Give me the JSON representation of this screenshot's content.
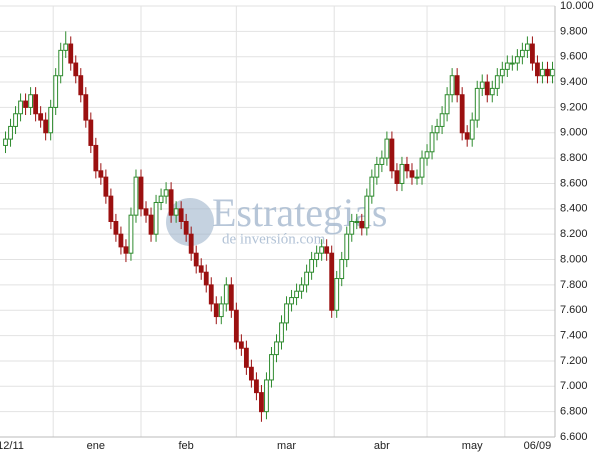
{
  "chart_data": {
    "type": "candlestick",
    "watermark": {
      "title": "Estrategias",
      "subtitle": "de inversión.com"
    },
    "categories": [
      null,
      "12/11",
      null,
      null,
      null,
      null,
      null,
      null,
      null,
      null,
      null,
      null,
      null,
      null,
      null,
      null,
      null,
      null,
      "ene",
      null,
      null,
      null,
      null,
      null,
      null,
      null,
      null,
      null,
      null,
      null,
      null,
      null,
      null,
      null,
      null,
      null,
      "feb",
      null,
      null,
      null,
      null,
      null,
      null,
      null,
      null,
      null,
      null,
      null,
      null,
      null,
      null,
      null,
      null,
      null,
      null,
      null,
      "mar",
      null,
      null,
      null,
      null,
      null,
      null,
      null,
      null,
      null,
      null,
      null,
      null,
      null,
      null,
      null,
      null,
      null,
      null,
      "abr",
      null,
      null,
      null,
      null,
      null,
      null,
      null,
      null,
      null,
      null,
      null,
      null,
      null,
      null,
      null,
      null,
      null,
      "may",
      null,
      null,
      null,
      null,
      null,
      null,
      null,
      null,
      null,
      null,
      null,
      null,
      "06/09",
      null,
      null,
      null
    ],
    "open": [
      8900,
      8950,
      9050,
      9150,
      9250,
      9200,
      9300,
      9150,
      9100,
      9000,
      9200,
      9450,
      9650,
      9700,
      9550,
      9450,
      9300,
      9100,
      8900,
      8700,
      8650,
      8500,
      8300,
      8200,
      8100,
      8050,
      8350,
      8650,
      8400,
      8350,
      8200,
      8450,
      8500,
      8550,
      8350,
      8400,
      8300,
      8200,
      8050,
      7950,
      7900,
      7800,
      7650,
      7550,
      7650,
      7800,
      7600,
      7350,
      7300,
      7150,
      7050,
      6950,
      6800,
      7050,
      7250,
      7350,
      7500,
      7650,
      7700,
      7750,
      7800,
      7900,
      8000,
      8050,
      8100,
      8050,
      7600,
      7850,
      8000,
      8200,
      8300,
      8300,
      8250,
      8500,
      8650,
      8750,
      8800,
      8950,
      8700,
      8600,
      8750,
      8700,
      8650,
      8650,
      8800,
      8850,
      9000,
      9050,
      9150,
      9300,
      9450,
      9300,
      9000,
      8950,
      9100,
      9350,
      9400,
      9300,
      9350,
      9450,
      9500,
      9550,
      9550,
      9600,
      9650,
      9700,
      9550,
      9450,
      9500,
      9450
    ],
    "high": [
      9010,
      9110,
      9210,
      9310,
      9310,
      9360,
      9360,
      9210,
      9160,
      9260,
      9510,
      9710,
      9800,
      9760,
      9610,
      9510,
      9360,
      9160,
      8960,
      8760,
      8710,
      8560,
      8360,
      8260,
      8160,
      8410,
      8710,
      8710,
      8460,
      8410,
      8510,
      8560,
      8610,
      8610,
      8460,
      8460,
      8360,
      8260,
      8110,
      8010,
      7960,
      7860,
      7710,
      7710,
      7860,
      7860,
      7660,
      7410,
      7360,
      7210,
      7110,
      7010,
      7110,
      7310,
      7410,
      7560,
      7710,
      7760,
      7810,
      7860,
      7960,
      8060,
      8110,
      8160,
      8160,
      8110,
      7910,
      8060,
      8260,
      8360,
      8360,
      8360,
      8560,
      8710,
      8810,
      8860,
      9010,
      9010,
      8760,
      8810,
      8810,
      8760,
      8710,
      8860,
      8910,
      9060,
      9110,
      9210,
      9360,
      9510,
      9510,
      9360,
      9060,
      9160,
      9410,
      9460,
      9460,
      9410,
      9510,
      9560,
      9610,
      9610,
      9660,
      9710,
      9760,
      9760,
      9610,
      9560,
      9560,
      9560
    ],
    "low": [
      8840,
      8890,
      8990,
      9090,
      9140,
      9140,
      9090,
      9040,
      8940,
      8940,
      9140,
      9390,
      9590,
      9490,
      9390,
      9240,
      9040,
      8840,
      8640,
      8590,
      8440,
      8240,
      8140,
      8040,
      7980,
      7990,
      8290,
      8340,
      8290,
      8140,
      8140,
      8390,
      8440,
      8290,
      8290,
      8240,
      8140,
      7990,
      7890,
      7840,
      7740,
      7590,
      7490,
      7490,
      7590,
      7540,
      7290,
      7240,
      7090,
      6990,
      6890,
      6720,
      6740,
      6990,
      7190,
      7290,
      7440,
      7590,
      7640,
      7690,
      7740,
      7840,
      7940,
      7990,
      7990,
      7540,
      7540,
      7790,
      7940,
      8140,
      8240,
      8190,
      8190,
      8440,
      8590,
      8690,
      8740,
      8640,
      8540,
      8540,
      8640,
      8590,
      8590,
      8590,
      8740,
      8790,
      8940,
      8990,
      9090,
      9240,
      9240,
      8940,
      8890,
      8890,
      9040,
      9290,
      9240,
      9240,
      9290,
      9390,
      9440,
      9490,
      9490,
      9540,
      9590,
      9490,
      9390,
      9390,
      9390,
      9390
    ],
    "close": [
      8950,
      9050,
      9150,
      9250,
      9200,
      9300,
      9150,
      9100,
      9000,
      9200,
      9450,
      9650,
      9700,
      9550,
      9450,
      9300,
      9100,
      8900,
      8700,
      8650,
      8500,
      8300,
      8200,
      8100,
      8050,
      8350,
      8650,
      8400,
      8350,
      8200,
      8450,
      8500,
      8550,
      8350,
      8400,
      8300,
      8200,
      8050,
      7950,
      7900,
      7800,
      7650,
      7550,
      7650,
      7800,
      7600,
      7350,
      7300,
      7150,
      7050,
      6950,
      6800,
      7050,
      7250,
      7350,
      7500,
      7650,
      7700,
      7750,
      7800,
      7900,
      8000,
      8050,
      8100,
      8050,
      7600,
      7850,
      8000,
      8200,
      8300,
      8300,
      8250,
      8500,
      8650,
      8750,
      8800,
      8950,
      8700,
      8600,
      8750,
      8700,
      8650,
      8650,
      8800,
      8850,
      9000,
      9050,
      9150,
      9300,
      9450,
      9300,
      9000,
      8950,
      9100,
      9350,
      9400,
      9300,
      9350,
      9450,
      9500,
      9550,
      9550,
      9600,
      9650,
      9700,
      9550,
      9450,
      9500,
      9450,
      9500
    ],
    "up_color": "#2e8b2e",
    "down_color": "#9b1010",
    "ylim": [
      6600,
      10000
    ],
    "yticks": [
      {
        "value": 6600,
        "label": "6.600"
      },
      {
        "value": 6800,
        "label": "6.800"
      },
      {
        "value": 7000,
        "label": "7.000"
      },
      {
        "value": 7200,
        "label": "7.200"
      },
      {
        "value": 7400,
        "label": "7.400"
      },
      {
        "value": 7600,
        "label": "7.600"
      },
      {
        "value": 7800,
        "label": "7.800"
      },
      {
        "value": 8000,
        "label": "8.000"
      },
      {
        "value": 8200,
        "label": "8.200"
      },
      {
        "value": 8400,
        "label": "8.400"
      },
      {
        "value": 8600,
        "label": "8.600"
      },
      {
        "value": 8800,
        "label": "8.800"
      },
      {
        "value": 9000,
        "label": "9.000"
      },
      {
        "value": 9200,
        "label": "9.200"
      },
      {
        "value": 9400,
        "label": "9.400"
      },
      {
        "value": 9600,
        "label": "9.600"
      },
      {
        "value": 9800,
        "label": "9.800"
      },
      {
        "value": 10000,
        "label": "10.000"
      }
    ],
    "grid": true
  }
}
